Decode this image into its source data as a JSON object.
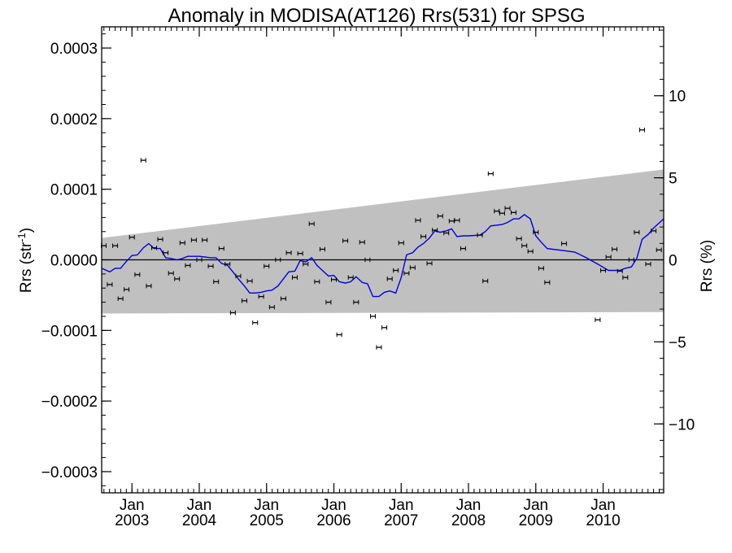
{
  "chart_data": {
    "type": "scatter",
    "title": "Anomaly in MODISA(AT126) Rrs(531) for SPSG",
    "ylabel_main": "Rrs (str",
    "ylabel_sup": "-1",
    "ylabel_close": ")",
    "y2label": "Rrs (%)",
    "ylim": [
      -0.00033,
      0.00033
    ],
    "y2lim": [
      -14.2,
      14.2
    ],
    "xlim": [
      2002.55,
      2010.9
    ],
    "yticks": [
      {
        "v": 0.0003,
        "label": "0.0003"
      },
      {
        "v": 0.0002,
        "label": "0.0002"
      },
      {
        "v": 0.0001,
        "label": "0.0001"
      },
      {
        "v": 0.0,
        "label": "0.0000"
      },
      {
        "v": -0.0001,
        "label": "−0.0001"
      },
      {
        "v": -0.0002,
        "label": "−0.0002"
      },
      {
        "v": -0.0003,
        "label": "−0.0003"
      }
    ],
    "y2ticks": [
      {
        "v": 10,
        "label": "10"
      },
      {
        "v": 5,
        "label": "5"
      },
      {
        "v": 0,
        "label": "0"
      },
      {
        "v": -5,
        "label": "−5"
      },
      {
        "v": -10,
        "label": "−10"
      }
    ],
    "xticks": [
      {
        "v": 2003.0,
        "month": "Jan",
        "year": "2003"
      },
      {
        "v": 2004.0,
        "month": "Jan",
        "year": "2004"
      },
      {
        "v": 2005.0,
        "month": "Jan",
        "year": "2005"
      },
      {
        "v": 2006.0,
        "month": "Jan",
        "year": "2006"
      },
      {
        "v": 2007.0,
        "month": "Jan",
        "year": "2007"
      },
      {
        "v": 2008.0,
        "month": "Jan",
        "year": "2008"
      },
      {
        "v": 2009.0,
        "month": "Jan",
        "year": "2009"
      },
      {
        "v": 2010.0,
        "month": "Jan",
        "year": "2010"
      }
    ],
    "band": {
      "x": [
        2002.55,
        2010.9
      ],
      "upper": [
        3.1e-05,
        0.000128
      ],
      "lower": [
        -7.6e-05,
        -7.4e-05
      ]
    },
    "colors": {
      "band": "#c0c0c0",
      "line": "#0000dd",
      "points": "#000000",
      "zero": "#000000"
    },
    "points": {
      "x": [
        2002.58,
        2002.67,
        2002.75,
        2002.83,
        2002.92,
        2003.0,
        2003.08,
        2003.17,
        2003.25,
        2003.33,
        2003.42,
        2003.5,
        2003.58,
        2003.67,
        2003.75,
        2003.83,
        2003.92,
        2004.0,
        2004.08,
        2004.17,
        2004.25,
        2004.33,
        2004.42,
        2004.5,
        2004.58,
        2004.67,
        2004.75,
        2004.83,
        2004.92,
        2005.0,
        2005.08,
        2005.17,
        2005.25,
        2005.33,
        2005.42,
        2005.5,
        2005.58,
        2005.67,
        2005.75,
        2005.83,
        2005.92,
        2006.0,
        2006.08,
        2006.17,
        2006.25,
        2006.33,
        2006.42,
        2006.5,
        2006.58,
        2006.67,
        2006.75,
        2006.83,
        2006.92,
        2007.0,
        2007.08,
        2007.17,
        2007.25,
        2007.33,
        2007.42,
        2007.5,
        2007.58,
        2007.67,
        2007.75,
        2007.83,
        2007.92,
        2008.17,
        2008.25,
        2008.33,
        2008.42,
        2008.5,
        2008.58,
        2008.67,
        2008.75,
        2008.83,
        2008.92,
        2009.0,
        2009.08,
        2009.17,
        2009.42,
        2009.92,
        2010.0,
        2010.08,
        2010.17,
        2010.25,
        2010.33,
        2010.42,
        2010.5,
        2010.58,
        2010.67,
        2010.75,
        2010.83
      ],
      "y": [
        2e-05,
        -3.5e-05,
        2e-05,
        -5.5e-05,
        -4.2e-05,
        3.2e-05,
        -2.1e-05,
        0.000141,
        -3.7e-05,
        1.7e-05,
        2.9e-05,
        1e-05,
        -1.9e-05,
        -2.7e-05,
        2.4e-05,
        -8e-06,
        2.8e-05,
        0.0,
        2.8e-05,
        -9e-06,
        -3.1e-05,
        1.6e-05,
        -6e-06,
        -7.5e-05,
        -2.3e-05,
        -5.8e-05,
        -3e-05,
        -8.9e-05,
        -5.2e-05,
        -9e-06,
        -6.7e-05,
        0.0,
        -5.5e-05,
        1e-05,
        -2.5e-05,
        9e-06,
        -6e-06,
        5.1e-05,
        -3.1e-05,
        1.5e-05,
        -6e-05,
        -2.8e-05,
        -0.000106,
        2.7e-05,
        -2.5e-05,
        -6e-05,
        2.5e-05,
        0.0,
        -8e-05,
        -0.000124,
        -9.6e-05,
        -2.7e-05,
        -1.5e-05,
        2.4e-05,
        -1.9e-05,
        -1.1e-05,
        5.6e-05,
        3.3e-05,
        -5e-06,
        4.2e-05,
        6.2e-05,
        3.8e-05,
        5.5e-05,
        5.6e-05,
        1.6e-05,
        3.5e-05,
        -3e-05,
        0.000122,
        6.9e-05,
        6.6e-05,
        7.3e-05,
        6.7e-05,
        3e-05,
        2e-05,
        1.2e-05,
        3.9e-05,
        -1.2e-05,
        -3.2e-05,
        2.3e-05,
        -8.5e-05,
        -1.5e-05,
        4e-06,
        1.5e-05,
        -1.6e-05,
        -2.5e-05,
        0.0,
        3.9e-05,
        0.000184,
        -6e-06,
        4.1e-05,
        1.4e-05
      ],
      "err": 2e-06
    },
    "line": {
      "x": [
        2002.55,
        2002.67,
        2002.75,
        2002.83,
        2002.92,
        2003.0,
        2003.08,
        2003.17,
        2003.25,
        2003.33,
        2003.42,
        2003.5,
        2003.58,
        2003.67,
        2003.75,
        2003.83,
        2003.92,
        2004.0,
        2004.08,
        2004.17,
        2004.25,
        2004.33,
        2004.42,
        2004.5,
        2004.58,
        2004.67,
        2004.75,
        2004.83,
        2004.92,
        2005.0,
        2005.08,
        2005.17,
        2005.25,
        2005.33,
        2005.42,
        2005.5,
        2005.58,
        2005.67,
        2005.75,
        2005.83,
        2005.92,
        2006.0,
        2006.08,
        2006.17,
        2006.25,
        2006.33,
        2006.42,
        2006.5,
        2006.58,
        2006.67,
        2006.75,
        2006.83,
        2006.92,
        2007.0,
        2007.08,
        2007.17,
        2007.25,
        2007.33,
        2007.42,
        2007.5,
        2007.58,
        2007.67,
        2007.75,
        2007.83,
        2007.92,
        2008.0,
        2008.17,
        2008.25,
        2008.33,
        2008.5,
        2008.58,
        2008.67,
        2008.75,
        2008.83,
        2008.92,
        2009.0,
        2009.08,
        2009.17,
        2009.25,
        2009.42,
        2009.58,
        2009.75,
        2009.92,
        2010.08,
        2010.25,
        2010.33,
        2010.42,
        2010.5,
        2010.58,
        2010.67,
        2010.75,
        2010.83,
        2010.9
      ],
      "y": [
        -1.2e-05,
        -1.7e-05,
        -1.2e-05,
        -1.2e-05,
        -2e-06,
        6e-06,
        7e-06,
        1.7e-05,
        2.3e-05,
        1.6e-05,
        1.6e-05,
        3e-06,
        2e-06,
        0.0,
        2e-06,
        5e-06,
        5e-06,
        5e-06,
        4e-06,
        3e-06,
        3e-06,
        -5e-06,
        -8e-06,
        -1.7e-05,
        -2.7e-05,
        -3.7e-05,
        -4.7e-05,
        -4.7e-05,
        -4.6e-05,
        -4.4e-05,
        -4.3e-05,
        -3.7e-05,
        -2.7e-05,
        -1.7e-05,
        -1.6e-05,
        -1e-06,
        -3e-06,
        3e-06,
        -8e-06,
        -1.5e-05,
        -2.3e-05,
        -2.2e-05,
        -3.1e-05,
        -3.3e-05,
        -3.1e-05,
        -2.4e-05,
        -3.2e-05,
        -3.4e-05,
        -5.2e-05,
        -5.2e-05,
        -4.6e-05,
        -4.4e-05,
        -4.7e-05,
        -2.5e-05,
        7e-06,
        1e-05,
        1.8e-05,
        2.3e-05,
        3.1e-05,
        4.1e-05,
        3.9e-05,
        4.1e-05,
        4.4e-05,
        3.3e-05,
        3.4e-05,
        3.4e-05,
        3.5e-05,
        4e-05,
        4.8e-05,
        5e-05,
        5.3e-05,
        5.8e-05,
        5.8e-05,
        6.4e-05,
        5.8e-05,
        3.4e-05,
        2.5e-05,
        1.6e-05,
        1.5e-05,
        1.3e-05,
        1.1e-05,
        3e-06,
        -6e-06,
        -1.5e-05,
        -1.5e-05,
        -1.2e-05,
        -1e-05,
        2e-06,
        2.9e-05,
        3.6e-05,
        4.5e-05,
        5.2e-05,
        5.8e-05
      ]
    }
  }
}
